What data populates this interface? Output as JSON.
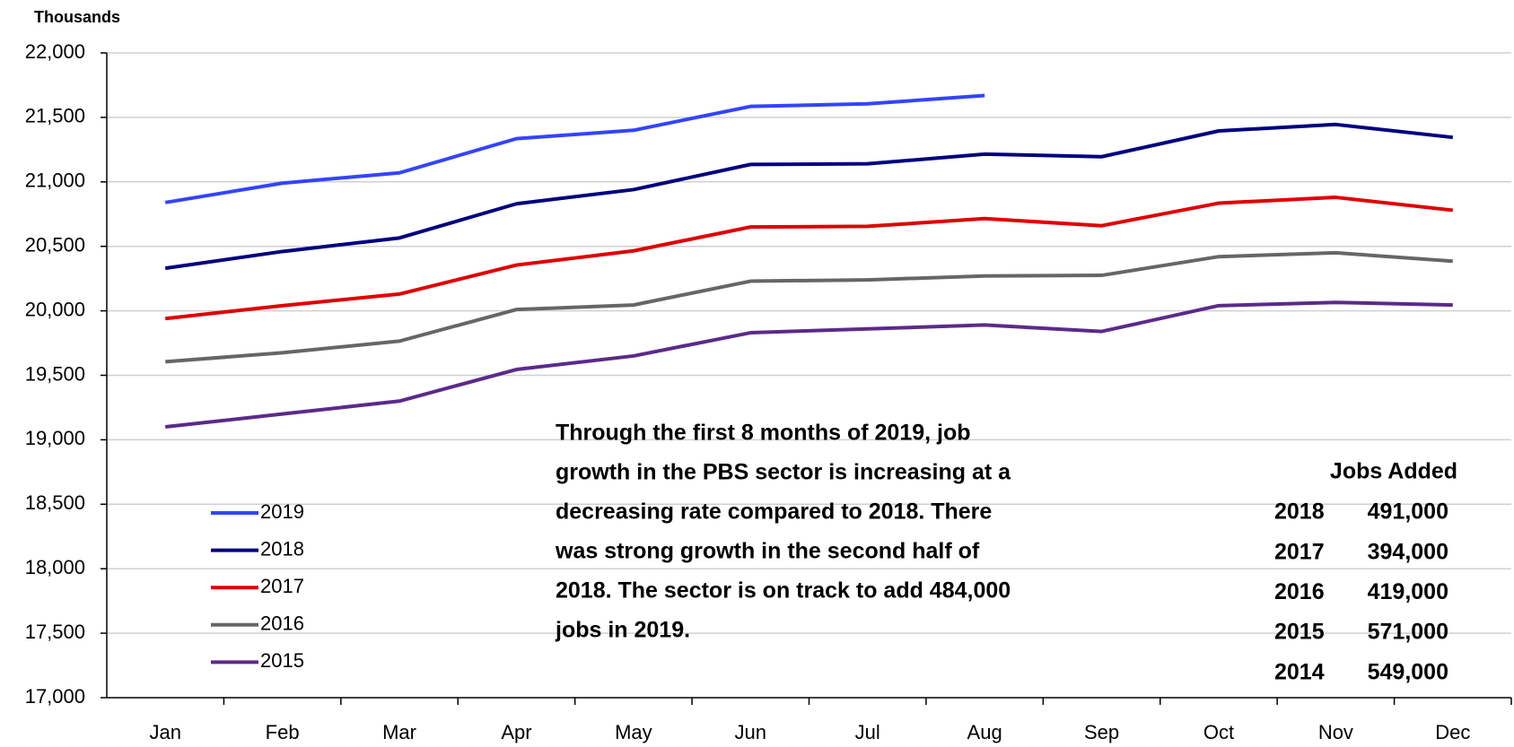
{
  "chart_data": {
    "type": "line",
    "y_unit_label": "Thousands",
    "categories": [
      "Jan",
      "Feb",
      "Mar",
      "Apr",
      "May",
      "Jun",
      "Jul",
      "Aug",
      "Sep",
      "Oct",
      "Nov",
      "Dec"
    ],
    "series": [
      {
        "name": "2019",
        "color": "#3344ff",
        "values": [
          20840,
          20990,
          21070,
          21335,
          21400,
          21585,
          21605,
          21670,
          null,
          null,
          null,
          null
        ]
      },
      {
        "name": "2018",
        "color": "#000080",
        "values": [
          20330,
          20460,
          20565,
          20830,
          20940,
          21135,
          21140,
          21215,
          21195,
          21395,
          21445,
          21345
        ]
      },
      {
        "name": "2017",
        "color": "#e00000",
        "values": [
          19940,
          20040,
          20130,
          20355,
          20465,
          20650,
          20655,
          20715,
          20660,
          20835,
          20880,
          20780
        ]
      },
      {
        "name": "2016",
        "color": "#666666",
        "values": [
          19605,
          19675,
          19765,
          20010,
          20045,
          20230,
          20240,
          20270,
          20275,
          20420,
          20450,
          20385
        ]
      },
      {
        "name": "2015",
        "color": "#5b2a8a",
        "values": [
          19100,
          19200,
          19300,
          19545,
          19650,
          19830,
          19860,
          19890,
          19840,
          20040,
          20065,
          20045
        ]
      }
    ],
    "ylim": [
      17000,
      22000
    ],
    "yticks": [
      {
        "value": 17000,
        "label": "17,000"
      },
      {
        "value": 17500,
        "label": "17,500"
      },
      {
        "value": 18000,
        "label": "18,000"
      },
      {
        "value": 18500,
        "label": "18,500"
      },
      {
        "value": 19000,
        "label": "19,000"
      },
      {
        "value": 19500,
        "label": "19,500"
      },
      {
        "value": 20000,
        "label": "20,000"
      },
      {
        "value": 20500,
        "label": "20,500"
      },
      {
        "value": 21000,
        "label": "21,000"
      },
      {
        "value": 21500,
        "label": "21,500"
      },
      {
        "value": 22000,
        "label": "22,000"
      }
    ],
    "grid": true,
    "legend": "lower-left",
    "annotation": [
      "Through the first 8 months of 2019, job",
      "growth in the PBS sector is increasing at a",
      "decreasing rate compared to 2018. There",
      "was strong growth in the second half of",
      "2018. The sector is on track to add 484,000",
      "jobs in 2019."
    ],
    "jobs_added": {
      "title": "Jobs Added",
      "rows": [
        [
          "2018",
          "491,000"
        ],
        [
          "2017",
          "394,000"
        ],
        [
          "2016",
          "419,000"
        ],
        [
          "2015",
          "571,000"
        ],
        [
          "2014",
          "549,000"
        ]
      ]
    }
  }
}
